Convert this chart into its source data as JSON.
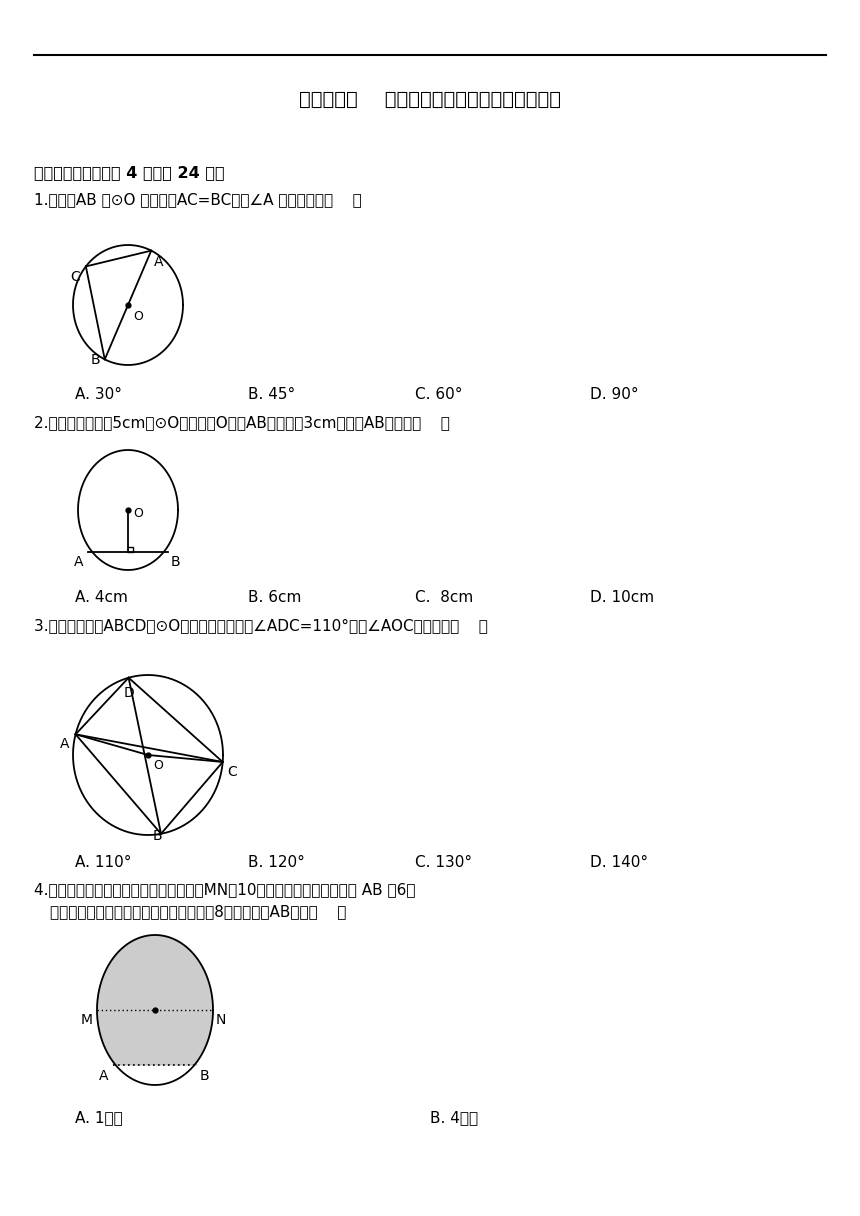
{
  "title": "第二十七章    《圆与正多边形》（基础测试卷）",
  "section1": "一、选择题（每小题 4 分，共 24 分）",
  "q1_text": "1.如图，AB 是⊙O 的直径，AC=BC，则∠A 的度数等于（    ）",
  "q1_opts": [
    "A. 30°",
    "B. 45°",
    "C. 60°",
    "D. 90°"
  ],
  "q2_text": "2.如图，在半径为5cm的⊙O中，圆心O到弦AB的距离为3cm，则弦AB的长是（    ）",
  "q2_opts": [
    "A. 4cm",
    "B. 6cm",
    "C.  8cm",
    "D. 10cm"
  ],
  "q3_text": "3.如图，四边形ABCD是⊙O的内接四边形，若∠ADC=110°，则∠AOC的度数为（    ）",
  "q3_opts": [
    "A. 110°",
    "B. 120°",
    "C. 130°",
    "D. 140°"
  ],
  "q4_text1": "4.在圆柱形油槽内装有一些油，油槽直径MN为10分米。截面如图，油面宽 AB 为6分",
  "q4_text2": "米，如果再注入一些油后，当油面宽变为8分米，油面AB上升（    ）",
  "q4_opts": [
    "A. 1分米",
    "B. 4分米"
  ],
  "bg_color": "#ffffff"
}
